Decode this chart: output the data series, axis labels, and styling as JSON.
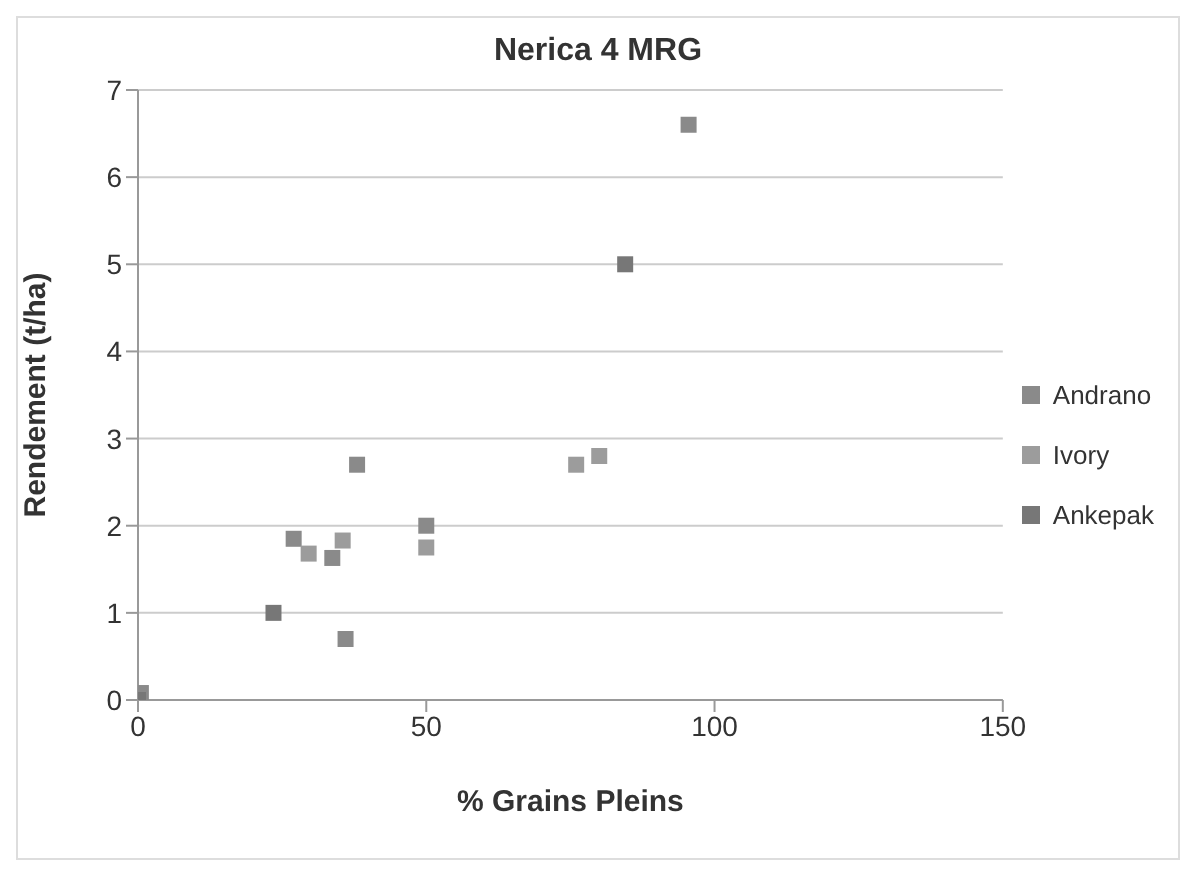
{
  "chart_data": {
    "type": "scatter",
    "title": "Nerica 4 MRG",
    "xlabel": "% Grains Pleins",
    "ylabel": "Rendement (t/ha)",
    "xlim": [
      0,
      150
    ],
    "xticks": [
      0,
      50,
      100,
      150
    ],
    "ylim": [
      0,
      7
    ],
    "yticks": [
      0,
      1,
      2,
      3,
      4,
      5,
      6,
      7
    ],
    "grid": "y",
    "legend": "right",
    "marker": "square",
    "series": [
      {
        "name": "Andrano",
        "color": "#8a8a8a",
        "x": [
          95.5,
          38,
          27,
          33.7,
          50,
          36,
          0.5
        ],
        "values": [
          6.6,
          2.7,
          1.85,
          1.63,
          2.0,
          0.7,
          0.08
        ]
      },
      {
        "name": "Ivory",
        "color": "#9c9c9c",
        "x": [
          76,
          80,
          29.6,
          35.5,
          50
        ],
        "values": [
          2.7,
          2.8,
          1.68,
          1.83,
          1.75
        ]
      },
      {
        "name": "Ankepak",
        "color": "#777777",
        "x": [
          84.5,
          23.5,
          0
        ],
        "values": [
          5.0,
          1.0,
          0
        ]
      }
    ]
  }
}
